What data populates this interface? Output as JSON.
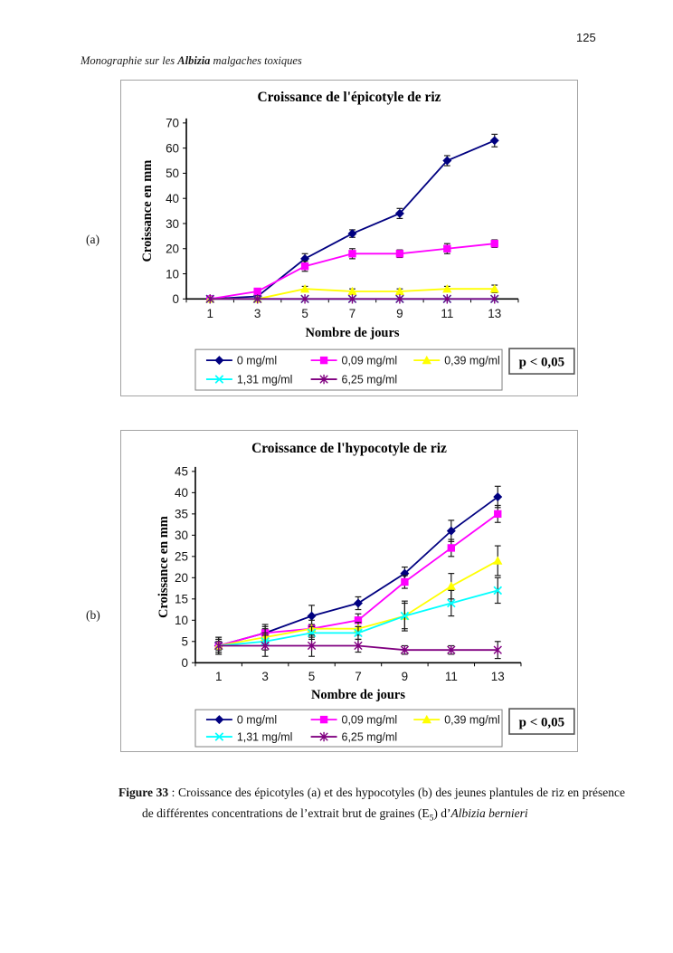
{
  "page": {
    "number": "125",
    "running_header": {
      "prefix": "Monographie sur les ",
      "genus_bold": "Albizia",
      "suffix": " malgaches toxiques"
    },
    "panel_a_label": "(a)",
    "panel_b_label": "(b)"
  },
  "chart_data": [
    {
      "id": "epicotyle-growth-chart",
      "type": "line",
      "title": "Croissance de l'épicotyle de riz",
      "xlabel": "Nombre de jours",
      "ylabel": "Croissance en mm",
      "x": [
        1,
        3,
        5,
        7,
        9,
        11,
        13
      ],
      "ylim": [
        0,
        70
      ],
      "ytick_step": 10,
      "grid": false,
      "legend_position": "bottom",
      "annotation": "p < 0,05",
      "series": [
        {
          "name": "0 mg/ml",
          "color": "#000080",
          "marker": "diamond",
          "values": [
            0,
            1,
            16,
            26,
            34,
            55,
            63
          ],
          "errors": [
            0.5,
            0.5,
            2,
            1.5,
            2,
            2,
            2.5
          ]
        },
        {
          "name": "0,09 mg/ml",
          "color": "#FF00FF",
          "marker": "square",
          "values": [
            0,
            3,
            13,
            18,
            18,
            20,
            22
          ],
          "errors": [
            0.5,
            1,
            2,
            2,
            1.5,
            2,
            1.5
          ]
        },
        {
          "name": "0,39 mg/ml",
          "color": "#FFFF00",
          "marker": "triangle",
          "values": [
            0,
            0,
            4,
            3,
            3,
            4,
            4
          ],
          "errors": [
            0,
            0.3,
            1,
            1,
            1,
            1,
            1.5
          ]
        },
        {
          "name": "1,31 mg/ml",
          "color": "#00FFFF",
          "marker": "x",
          "values": [
            0,
            0,
            0,
            0,
            0,
            0,
            0
          ],
          "errors": [
            0,
            0,
            0,
            0,
            0,
            0,
            0
          ]
        },
        {
          "name": "6,25 mg/ml",
          "color": "#800080",
          "marker": "star",
          "values": [
            0,
            0,
            0,
            0,
            0,
            0,
            0
          ],
          "errors": [
            0,
            0,
            0,
            0,
            0,
            0,
            0
          ]
        }
      ]
    },
    {
      "id": "hypocotyle-growth-chart",
      "type": "line",
      "title": "Croissance de l'hypocotyle de riz",
      "xlabel": "Nombre de jours",
      "ylabel": "Croissance en mm",
      "x": [
        1,
        3,
        5,
        7,
        9,
        11,
        13
      ],
      "ylim": [
        0,
        45
      ],
      "ytick_step": 5,
      "grid": false,
      "legend_position": "bottom",
      "annotation": "p < 0,05",
      "series": [
        {
          "name": "0 mg/ml",
          "color": "#000080",
          "marker": "diamond",
          "values": [
            4,
            7,
            11,
            14,
            21,
            31,
            39
          ],
          "errors": [
            2,
            2,
            2.5,
            1.5,
            1.5,
            2.5,
            2.5
          ]
        },
        {
          "name": "0,09 mg/ml",
          "color": "#FF00FF",
          "marker": "square",
          "values": [
            4,
            7,
            8,
            10,
            19,
            27,
            35
          ],
          "errors": [
            1.5,
            1.5,
            1,
            1.5,
            1.5,
            2,
            2
          ]
        },
        {
          "name": "0,39 mg/ml",
          "color": "#FFFF00",
          "marker": "triangle",
          "values": [
            4,
            6,
            8,
            8,
            11,
            18,
            24
          ],
          "errors": [
            1,
            2,
            2,
            1.5,
            3.5,
            3,
            3.5
          ]
        },
        {
          "name": "1,31 mg/ml",
          "color": "#00FFFF",
          "marker": "x",
          "values": [
            4,
            5,
            7,
            7,
            11,
            14,
            17
          ],
          "errors": [
            2,
            2,
            1.5,
            1.5,
            3,
            3,
            3
          ]
        },
        {
          "name": "6,25 mg/ml",
          "color": "#800080",
          "marker": "star",
          "values": [
            4,
            4,
            4,
            4,
            3,
            3,
            3
          ],
          "errors": [
            1.5,
            2.5,
            2.5,
            1.5,
            1,
            1,
            2
          ]
        }
      ]
    }
  ],
  "caption": {
    "figure_label": "Figure 33",
    "separator": " : ",
    "body": "Croissance des épicotyles (a) et des hypocotyles (b) des jeunes plantules de riz en présence de différentes concentrations de l’extrait brut de graines (E",
    "subscript": "5",
    "after_subscript": ") d’",
    "species_italic": "Albizia bernieri"
  }
}
